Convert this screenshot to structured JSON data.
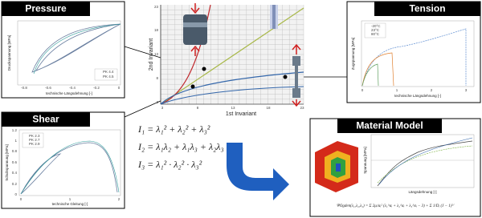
{
  "pressure": {
    "title": "Pressure",
    "y_label": "Druckspannung [MPa]",
    "x_label": "technische Längsdehnung [-]",
    "x_ticks": [
      "-0.8",
      "-0.6",
      "-0.4",
      "-0.2",
      "0"
    ],
    "legend": [
      "PK 4.4",
      "PK 4.5"
    ]
  },
  "shear": {
    "title": "Shear",
    "y_label": "Schubspannung [MPa]",
    "x_label": "technische Gleitung [-]",
    "x_ticks": [
      "0",
      "1",
      "2"
    ],
    "y_ticks": [
      "0",
      "0.2",
      "0.4",
      "0.6",
      "0.8",
      "1",
      "1.2"
    ],
    "legend": [
      "PK 2.3",
      "PK 2.7",
      "PK 2.9"
    ]
  },
  "invariants": {
    "y_label": "2nd Invariant",
    "x_label": "1st Invariant",
    "x_ticks": [
      "3",
      "8",
      "13",
      "18",
      "23"
    ],
    "y_ticks": [
      "3",
      "8",
      "13",
      "18",
      "23"
    ]
  },
  "tension": {
    "title": "Tension",
    "y_label": "Zugspannung [MPa]",
    "x_label": "technische Längsdehnung [-]",
    "x_ticks": [
      "0",
      "1",
      "2",
      "3"
    ],
    "legend": [
      "-20°C",
      "23°C",
      "80°C"
    ]
  },
  "formulas": [
    "I₁ = λ₁² + λ₂² + λ₃²",
    "I₂ = λ₁λ₂ + λ₁λ₃ + λ₂λ₃",
    "I₃ = λ₁² · λ₂² · λ₃²"
  ],
  "material_model": {
    "title": "Material Model",
    "y_label": "Spannung [MPa]",
    "x_label": "Längsdehnung [-]",
    "formula": "ΨOgden(λ₁,λ₂,λ₃) = Σ 2μᵢ/αᵢ² (λ₁^αᵢ + λ₂^αᵢ + λ₃^αᵢ − 3) + Σ 1/Dᵢ (J − 1)²ⁱ"
  }
}
